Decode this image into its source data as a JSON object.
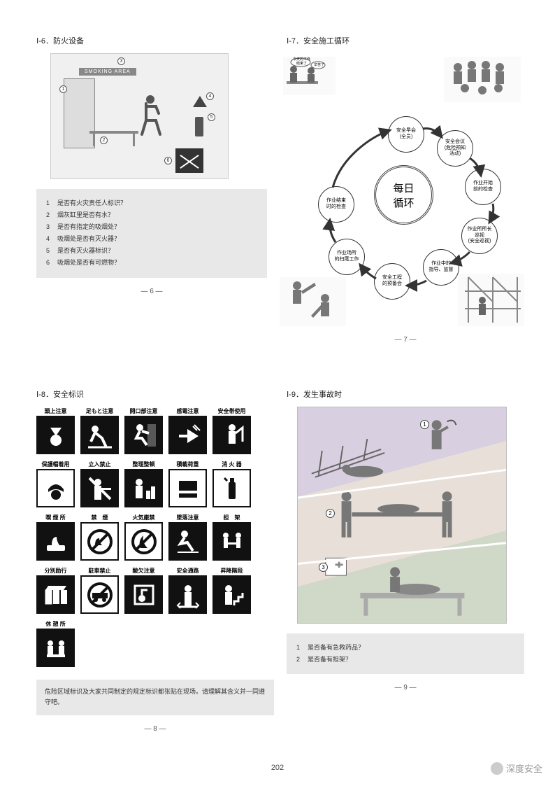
{
  "bottom_page_number": "202",
  "watermark": "深度安全",
  "p6": {
    "title": "Ⅰ-6．防火设备",
    "smoking_sign": "SMOKING AREA",
    "markers": [
      "1",
      "2",
      "3",
      "4",
      "5",
      "6"
    ],
    "questions": [
      "是否有火灾责任人标识？",
      "烟灰缸里是否有水？",
      "是否有指定的吸烟处？",
      "吸烟处是否有灭火器？",
      "是否有灭火器标识？",
      "吸烟处是否有可燃物？"
    ],
    "page_label": "— 6 —"
  },
  "p7": {
    "title": "Ⅰ-7．安全施工循环",
    "center": "每日\n循环",
    "nodes": [
      "安全早会\n(全员)",
      "安全会议\n(危险预知\n活动)",
      "作业开始\n前的检查",
      "作业所所长\n巡视\n(安全巡视)",
      "作业中的\n指导、监督",
      "安全工程\n的预备会",
      "作业场所\n的扫尾工作",
      "作业结束\n时的检查"
    ],
    "speech1": "今天的工作\n结束了",
    "speech2": "辛苦了",
    "page_label": "— 7 —"
  },
  "p8": {
    "title": "Ⅰ-8．安全标识",
    "signs": [
      {
        "label": "頭上注意",
        "style": "black"
      },
      {
        "label": "足もと注意",
        "style": "black"
      },
      {
        "label": "開口部注意",
        "style": "black"
      },
      {
        "label": "感電注意",
        "style": "black"
      },
      {
        "label": "安全帯使用",
        "style": "black"
      },
      {
        "label": "保護帽着用",
        "style": "white"
      },
      {
        "label": "立入禁止",
        "style": "black"
      },
      {
        "label": "整理整頓",
        "style": "black"
      },
      {
        "label": "積載荷重",
        "style": "white"
      },
      {
        "label": "消 火 器",
        "style": "white"
      },
      {
        "label": "喫 煙 所",
        "style": "black"
      },
      {
        "label": "禁　煙",
        "style": "white"
      },
      {
        "label": "火気厳禁",
        "style": "white"
      },
      {
        "label": "墜落注意",
        "style": "black"
      },
      {
        "label": "担　架",
        "style": "black"
      },
      {
        "label": "分別励行",
        "style": "black"
      },
      {
        "label": "駐車禁止",
        "style": "white"
      },
      {
        "label": "酸欠注意",
        "style": "black"
      },
      {
        "label": "安全通路",
        "style": "black"
      },
      {
        "label": "昇降階段",
        "style": "black"
      },
      {
        "label": "休 憩 所",
        "style": "black"
      }
    ],
    "note": "危险区域标识及大家共同制定的规定标识都张贴在现场。请理解其含义并一同遵守吧。",
    "page_label": "— 8 —"
  },
  "p9": {
    "title": "Ⅰ-9．发生事故时",
    "markers": [
      "1",
      "2",
      "3"
    ],
    "questions": [
      "是否备有急救药品？",
      "是否备有担架？"
    ],
    "page_label": "— 9 —"
  },
  "colors": {
    "grey_box": "#e8e8e8",
    "text": "#333333",
    "black": "#111111"
  }
}
